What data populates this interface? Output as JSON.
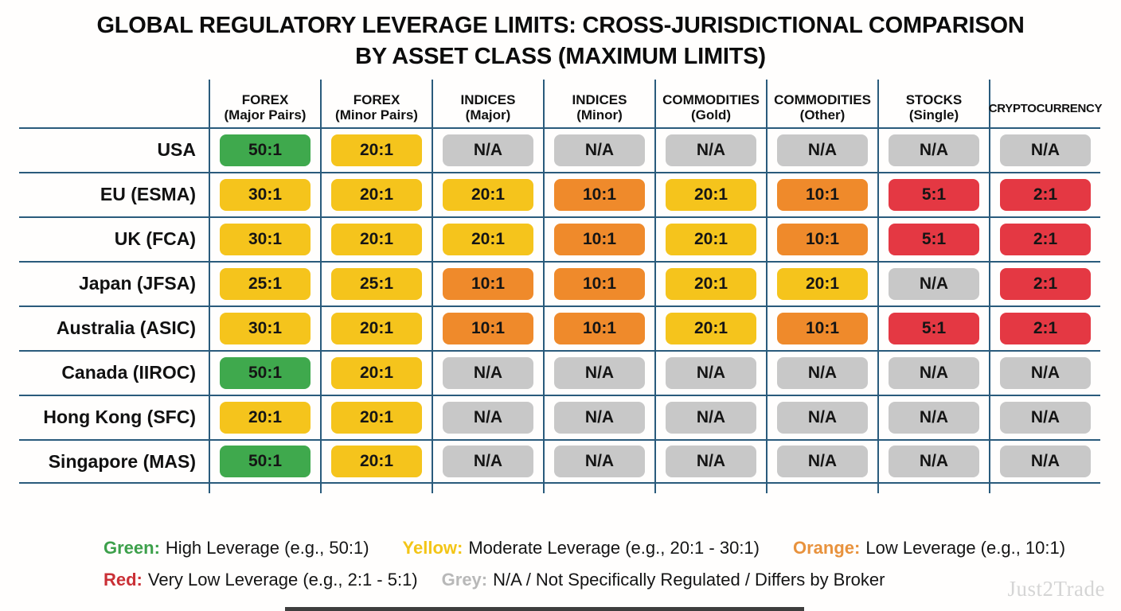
{
  "title": {
    "line1": "GLOBAL REGULATORY LEVERAGE LIMITS: CROSS-JURISDICTIONAL COMPARISON",
    "line2": "BY ASSET CLASS (MAXIMUM LIMITS)"
  },
  "table": {
    "columns_display": [
      {
        "line1": "FOREX",
        "line2": "(Major Pairs)"
      },
      {
        "line1": "FOREX",
        "line2": "(Minor Pairs)"
      },
      {
        "line1": "INDICES",
        "line2": "(Major)"
      },
      {
        "line1": "INDICES",
        "line2": "(Minor)"
      },
      {
        "line1": "COMMODITIES",
        "line2": "(Gold)"
      },
      {
        "line1": "COMMODITIES",
        "line2": "(Other)"
      },
      {
        "line1": "STOCKS",
        "line2": "(Single)"
      },
      {
        "line1": "CRYPTOCURRENCY",
        "line2": ""
      }
    ]
  },
  "chart_data": {
    "type": "table",
    "title": "GLOBAL REGULATORY LEVERAGE LIMITS: CROSS-JURISDICTIONAL COMPARISON BY ASSET CLASS (MAXIMUM LIMITS)",
    "columns": [
      "FOREX (Major Pairs)",
      "FOREX (Minor Pairs)",
      "INDICES (Major)",
      "INDICES (Minor)",
      "COMMODITIES (Gold)",
      "COMMODITIES (Other)",
      "STOCKS (Single)",
      "CRYPTOCURRENCY"
    ],
    "rows": [
      {
        "jurisdiction": "USA",
        "values": [
          "50:1",
          "20:1",
          "N/A",
          "N/A",
          "N/A",
          "N/A",
          "N/A",
          "N/A"
        ],
        "levels": [
          "green",
          "yellow",
          "grey",
          "grey",
          "grey",
          "grey",
          "grey",
          "grey"
        ]
      },
      {
        "jurisdiction": "EU (ESMA)",
        "values": [
          "30:1",
          "20:1",
          "20:1",
          "10:1",
          "20:1",
          "10:1",
          "5:1",
          "2:1"
        ],
        "levels": [
          "yellow",
          "yellow",
          "yellow",
          "orange",
          "yellow",
          "orange",
          "red",
          "red"
        ]
      },
      {
        "jurisdiction": "UK (FCA)",
        "values": [
          "30:1",
          "20:1",
          "20:1",
          "10:1",
          "20:1",
          "10:1",
          "5:1",
          "2:1"
        ],
        "levels": [
          "yellow",
          "yellow",
          "yellow",
          "orange",
          "yellow",
          "orange",
          "red",
          "red"
        ]
      },
      {
        "jurisdiction": "Japan (JFSA)",
        "values": [
          "25:1",
          "25:1",
          "10:1",
          "10:1",
          "20:1",
          "20:1",
          "N/A",
          "2:1"
        ],
        "levels": [
          "yellow",
          "yellow",
          "orange",
          "orange",
          "yellow",
          "yellow",
          "grey",
          "red"
        ]
      },
      {
        "jurisdiction": "Australia (ASIC)",
        "values": [
          "30:1",
          "20:1",
          "10:1",
          "10:1",
          "20:1",
          "10:1",
          "5:1",
          "2:1"
        ],
        "levels": [
          "yellow",
          "yellow",
          "orange",
          "orange",
          "yellow",
          "orange",
          "red",
          "red"
        ]
      },
      {
        "jurisdiction": "Canada (IIROC)",
        "values": [
          "50:1",
          "20:1",
          "N/A",
          "N/A",
          "N/A",
          "N/A",
          "N/A",
          "N/A"
        ],
        "levels": [
          "green",
          "yellow",
          "grey",
          "grey",
          "grey",
          "grey",
          "grey",
          "grey"
        ]
      },
      {
        "jurisdiction": "Hong Kong (SFC)",
        "values": [
          "20:1",
          "20:1",
          "N/A",
          "N/A",
          "N/A",
          "N/A",
          "N/A",
          "N/A"
        ],
        "levels": [
          "yellow",
          "yellow",
          "grey",
          "grey",
          "grey",
          "grey",
          "grey",
          "grey"
        ]
      },
      {
        "jurisdiction": "Singapore (MAS)",
        "values": [
          "50:1",
          "20:1",
          "N/A",
          "N/A",
          "N/A",
          "N/A",
          "N/A",
          "N/A"
        ],
        "levels": [
          "green",
          "yellow",
          "grey",
          "grey",
          "grey",
          "grey",
          "grey",
          "grey"
        ]
      }
    ]
  },
  "legend": {
    "rows": [
      [
        {
          "color": "legend_green",
          "label": "Green:",
          "text": "High Leverage (e.g., 50:1)"
        },
        {
          "color": "legend_yellow",
          "label": "Yellow:",
          "text": "Moderate Leverage (e.g., 20:1 - 30:1)"
        },
        {
          "color": "legend_orange",
          "label": "Orange:",
          "text": "Low Leverage (e.g., 10:1)"
        }
      ],
      [
        {
          "color": "legend_red",
          "label": "Red:",
          "text": "Very Low Leverage (e.g., 2:1 - 5:1)"
        },
        {
          "color": "legend_grey",
          "label": "Grey:",
          "text": "N/A / Not Specifically Regulated / Differs by Broker"
        }
      ]
    ]
  },
  "watermark": "Just2Trade",
  "colors": {
    "green": "#3FA94D",
    "yellow": "#F5C41C",
    "orange": "#EF8A2B",
    "red": "#E43843",
    "grey": "#C8C8C8",
    "line": "#2A5B7C",
    "legend_green": "#3DA04B",
    "legend_yellow": "#F3C517",
    "legend_orange": "#E8923D",
    "legend_red": "#CA3036",
    "legend_grey": "#B8B8B8",
    "watermark": "#D5D5D5"
  }
}
